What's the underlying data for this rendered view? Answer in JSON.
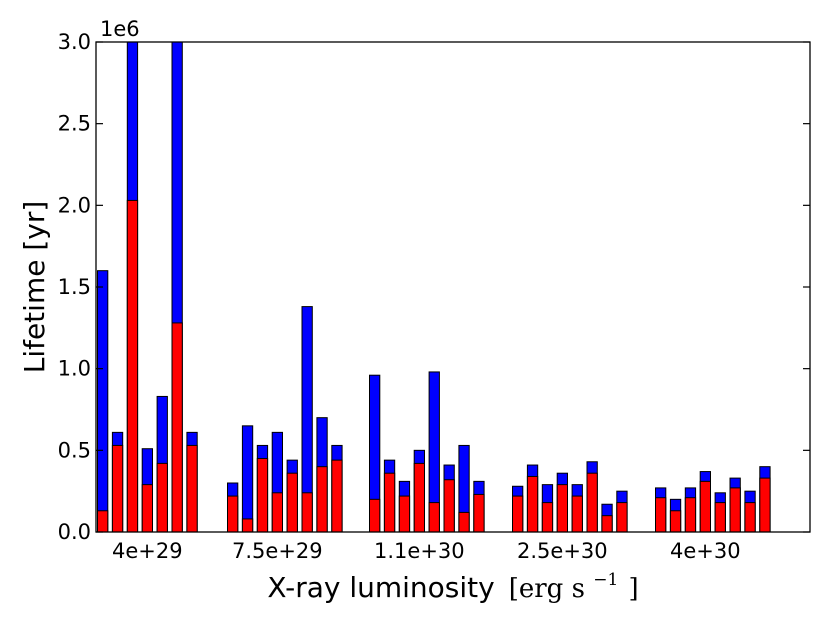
{
  "chart_data": {
    "type": "bar",
    "stacked": true,
    "xlabel": "X-ray luminosity",
    "xlabel_unit": {
      "base": "[erg s",
      "exponent": "−1",
      "close": "]"
    },
    "ylabel": "Lifetime [yr]",
    "y_offset_label": "1e6",
    "ylim": [
      0,
      3000000
    ],
    "yticks": [
      0,
      500000,
      1000000,
      1500000,
      2000000,
      2500000,
      3000000
    ],
    "ytick_labels": [
      "0.0",
      "0.5",
      "1.0",
      "1.5",
      "2.0",
      "2.5",
      "3.0"
    ],
    "grid": false,
    "colors": {
      "red": "#ff0000",
      "blue": "#0000ff",
      "edge": "#000000"
    },
    "groups": [
      {
        "label": "4e+29",
        "red": [
          130000,
          530000,
          2030000,
          290000,
          420000,
          1280000,
          530000
        ],
        "blue": [
          1600000,
          610000,
          3000000,
          510000,
          830000,
          3000000,
          610000
        ]
      },
      {
        "label": "7.5e+29",
        "red": [
          220000,
          80000,
          450000,
          240000,
          360000,
          240000,
          400000,
          440000
        ],
        "blue": [
          300000,
          650000,
          530000,
          610000,
          440000,
          1380000,
          700000,
          530000
        ]
      },
      {
        "label": "1.1e+30",
        "red": [
          200000,
          360000,
          220000,
          420000,
          180000,
          320000,
          120000,
          230000
        ],
        "blue": [
          960000,
          440000,
          310000,
          500000,
          980000,
          410000,
          530000,
          310000
        ]
      },
      {
        "label": "2.5e+30",
        "red": [
          220000,
          340000,
          180000,
          290000,
          220000,
          360000,
          100000,
          180000
        ],
        "blue": [
          280000,
          410000,
          290000,
          360000,
          290000,
          430000,
          170000,
          250000
        ]
      },
      {
        "label": "4e+30",
        "red": [
          210000,
          130000,
          210000,
          310000,
          180000,
          270000,
          180000,
          330000
        ],
        "blue": [
          270000,
          200000,
          270000,
          370000,
          240000,
          330000,
          250000,
          400000
        ]
      }
    ]
  }
}
